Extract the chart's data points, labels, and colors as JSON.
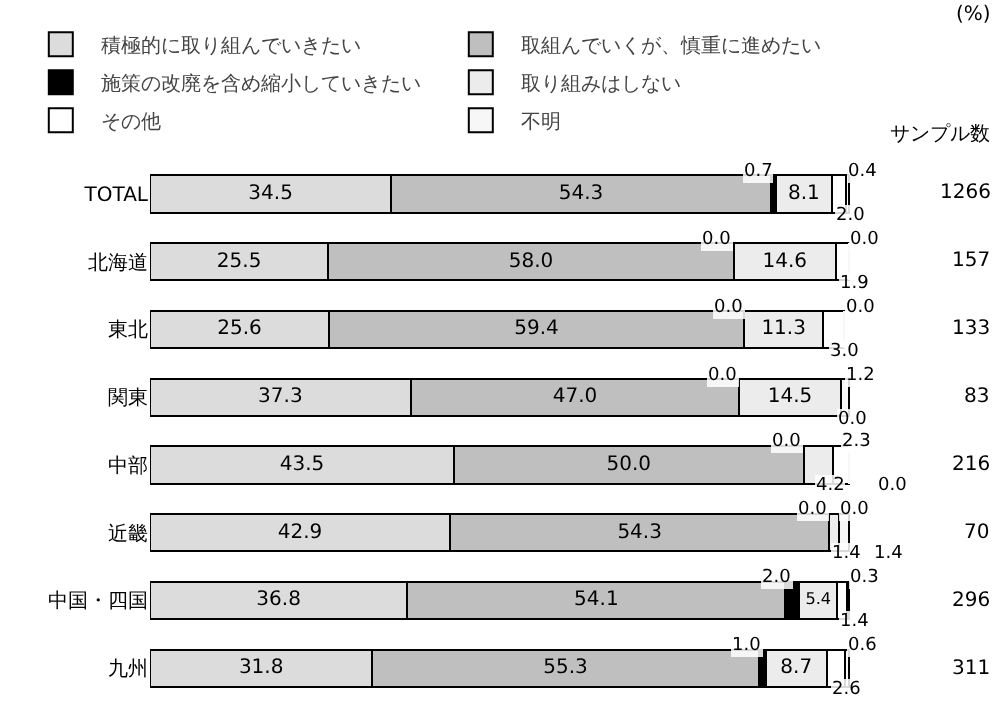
{
  "chart_data": {
    "type": "bar",
    "orientation": "horizontal",
    "stacked": true,
    "legend": "top",
    "tick_labels": "y",
    "grid": false,
    "categories": [
      "TOTAL",
      "北海道",
      "東北",
      "関東",
      "中部",
      "近畿",
      "中国・四国",
      "九州"
    ],
    "series": [
      {
        "name": "積極的に取り組んでいきたい",
        "color": "#dcdcdc",
        "values": [
          34.5,
          25.5,
          25.6,
          37.3,
          43.5,
          42.9,
          36.8,
          31.8
        ],
        "value_labels": [
          "34.5",
          "25.5",
          "25.6",
          "37.3",
          "43.5",
          "42.9",
          "36.8",
          "31.8"
        ]
      },
      {
        "name": "取組んでいくが、慎重に進めたい",
        "color": "#bfbfbf",
        "values": [
          54.3,
          58.0,
          59.4,
          47.0,
          50.0,
          54.3,
          54.1,
          55.3
        ],
        "value_labels": [
          "54.3",
          "58.0",
          "59.4",
          "47.0",
          "50.0",
          "54.3",
          "54.1",
          "55.3"
        ]
      },
      {
        "name": "施策の改廃を含め縮小していきたい",
        "color": "#000000",
        "values": [
          0.7,
          0.0,
          0.0,
          0.0,
          0.0,
          0.0,
          2.0,
          1.0
        ],
        "value_labels": [
          "0.7",
          "0.0",
          "0.0",
          "0.0",
          "0.0",
          "0.0",
          "2.0",
          "1.0"
        ]
      },
      {
        "name": "取り組みはしない",
        "color": "#ececec",
        "values": [
          8.1,
          14.6,
          11.3,
          14.5,
          4.2,
          1.4,
          5.4,
          8.7
        ],
        "value_labels": [
          "8.1",
          "14.6",
          "11.3",
          "14.5",
          "4.2",
          "1.4",
          "5.4",
          "8.7"
        ]
      },
      {
        "name": "その他",
        "color": "#ffffff",
        "values": [
          2.0,
          1.9,
          3.0,
          0.0,
          2.3,
          0.0,
          1.4,
          2.6
        ],
        "value_labels": [
          "2.0",
          "1.9",
          "3.0",
          "0.0",
          "2.3",
          "0.0",
          "1.4",
          "2.6"
        ]
      },
      {
        "name": "不明",
        "color": "#f7f7f7",
        "values": [
          0.4,
          0.0,
          0.0,
          1.2,
          0.0,
          1.4,
          0.3,
          0.6
        ],
        "value_labels": [
          "0.4",
          "0.0",
          "0.0",
          "1.2",
          "0.0",
          "1.4",
          "0.3",
          "0.6"
        ]
      }
    ],
    "annotations": [
      "(%)",
      "サンプル数",
      "1266",
      "157",
      "133",
      "83",
      "216",
      "70",
      "296",
      "311"
    ]
  }
}
